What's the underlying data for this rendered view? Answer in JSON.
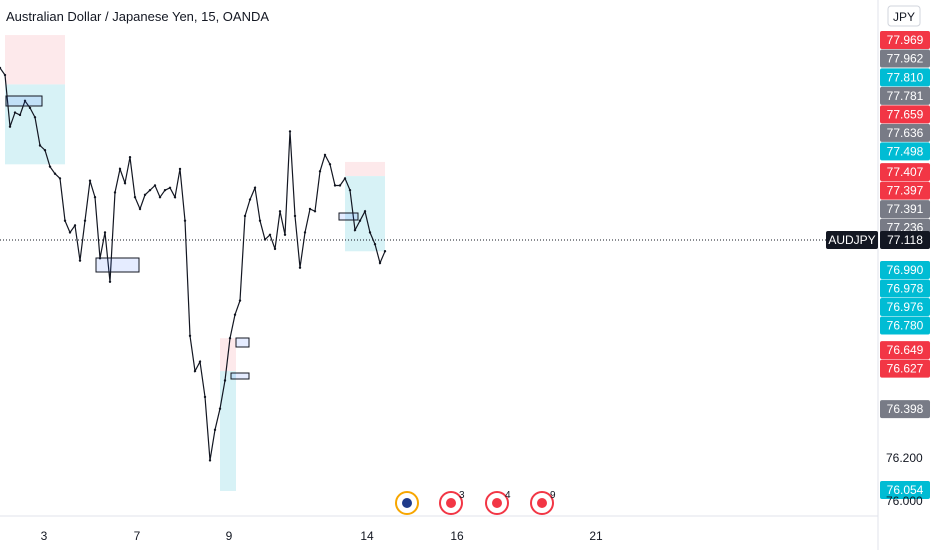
{
  "header": {
    "title": "Australian Dollar / Japanese Yen, 15, OANDA",
    "currency_button": "JPY"
  },
  "colors": {
    "up_red": "#f23645",
    "teal": "#00bcd4",
    "gray": "#787b86",
    "dark": "#131722",
    "short_zone": "#fce4e6",
    "long_zone": "#cdeff4"
  },
  "chart_data": {
    "type": "line",
    "symbol": "AUDJPY",
    "last_price": "77.118",
    "ylim": [
      75.98,
      78.06
    ],
    "x_ticks": [
      "3",
      "7",
      "9",
      "14",
      "16",
      "21"
    ],
    "y_ticks": [
      "76.200",
      "76.000"
    ],
    "x": [
      0,
      5,
      10,
      15,
      20,
      25,
      30,
      35,
      40,
      45,
      50,
      55,
      60,
      65,
      70,
      75,
      80,
      85,
      90,
      95,
      100,
      105,
      110,
      115,
      120,
      125,
      130,
      135,
      140,
      145,
      150,
      155,
      160,
      165,
      170,
      175,
      180,
      185,
      190,
      195,
      200,
      205,
      210,
      215,
      220,
      225,
      230,
      235,
      240,
      245,
      250,
      255,
      260,
      265,
      270,
      275,
      280,
      285,
      290,
      295,
      300,
      305,
      310,
      315,
      320,
      325,
      330,
      335,
      340,
      345,
      350,
      355,
      360,
      365,
      370,
      375,
      380,
      385
    ],
    "close": [
      77.85,
      77.82,
      77.6,
      77.66,
      77.65,
      77.71,
      77.68,
      77.64,
      77.52,
      77.5,
      77.43,
      77.4,
      77.38,
      77.2,
      77.15,
      77.18,
      77.03,
      77.2,
      77.37,
      77.3,
      77.04,
      77.15,
      76.94,
      77.32,
      77.42,
      77.36,
      77.47,
      77.3,
      77.25,
      77.31,
      77.33,
      77.35,
      77.3,
      77.33,
      77.34,
      77.3,
      77.42,
      77.2,
      76.71,
      76.56,
      76.6,
      76.45,
      76.18,
      76.31,
      76.4,
      76.52,
      76.7,
      76.8,
      76.86,
      77.22,
      77.29,
      77.34,
      77.2,
      77.12,
      77.14,
      77.08,
      77.24,
      77.14,
      77.58,
      77.22,
      77.0,
      77.15,
      77.25,
      77.24,
      77.41,
      77.48,
      77.44,
      77.35,
      77.35,
      77.38,
      77.33,
      77.16,
      77.2,
      77.24,
      77.15,
      77.1,
      77.02,
      77.07
    ],
    "price_labels": [
      {
        "price": "77.969",
        "color": "up_red"
      },
      {
        "price": "77.962",
        "color": "gray"
      },
      {
        "price": "77.810",
        "color": "teal"
      },
      {
        "price": "77.781",
        "color": "gray"
      },
      {
        "price": "77.659",
        "color": "up_red"
      },
      {
        "price": "77.636",
        "color": "gray"
      },
      {
        "price": "77.498",
        "color": "teal"
      },
      {
        "price": "77.407",
        "color": "up_red"
      },
      {
        "price": "77.397",
        "color": "up_red"
      },
      {
        "price": "77.391",
        "color": "gray"
      },
      {
        "price": "77.236",
        "color": "gray"
      },
      {
        "price": "76.990",
        "color": "teal"
      },
      {
        "price": "76.978",
        "color": "teal"
      },
      {
        "price": "76.976",
        "color": "teal"
      },
      {
        "price": "76.780",
        "color": "teal"
      },
      {
        "price": "76.649",
        "color": "up_red"
      },
      {
        "price": "76.627",
        "color": "up_red"
      },
      {
        "price": "76.398",
        "color": "gray"
      },
      {
        "price": "76.054",
        "color": "teal"
      }
    ],
    "positions": [
      {
        "kind": "short",
        "x_start": 5,
        "x_end": 65,
        "entry": 77.78,
        "stop": 77.99,
        "target": 77.44
      },
      {
        "kind": "short",
        "x_start": 345,
        "x_end": 385,
        "entry": 77.39,
        "stop": 77.45,
        "target": 77.07
      },
      {
        "kind": "long",
        "x_start": 220,
        "x_end": 236,
        "entry": 76.56,
        "stop": 76.7,
        "target": 76.05
      }
    ],
    "events": [
      {
        "x": "8",
        "count": ""
      },
      {
        "x": "15",
        "count": "3"
      },
      {
        "x": "16",
        "count": "4"
      },
      {
        "x": "17",
        "count": "9"
      }
    ]
  }
}
